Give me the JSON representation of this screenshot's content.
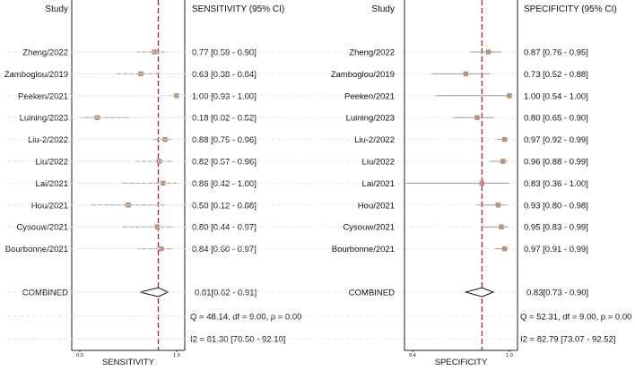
{
  "chart_data": [
    {
      "type": "forest",
      "study_header": "Study",
      "ci_header": "SENSITIVITY (95% CI)",
      "xlabel": "SENSITIVITY",
      "xlim": [
        0.0,
        1.0
      ],
      "xticks": [
        "0.0",
        "1.0"
      ],
      "reference_line": 0.81,
      "studies": [
        {
          "name": "Zheng/2022",
          "est": 0.77,
          "lo": 0.59,
          "hi": 0.9,
          "label": "0.77 [0.59 - 0.90]"
        },
        {
          "name": "Zamboglou/2019",
          "est": 0.63,
          "lo": 0.38,
          "hi": 0.84,
          "label": "0.63 [0.38 - 0.84]"
        },
        {
          "name": "Peeken/2021",
          "est": 1.0,
          "lo": 0.93,
          "hi": 1.0,
          "label": "1.00 [0.93 - 1.00]"
        },
        {
          "name": "Luining/2023",
          "est": 0.18,
          "lo": 0.02,
          "hi": 0.52,
          "label": "0.18 [0.02 - 0.52]"
        },
        {
          "name": "Liu-2/2022",
          "est": 0.88,
          "lo": 0.75,
          "hi": 0.96,
          "label": "0.88 [0.75 - 0.96]"
        },
        {
          "name": "Liu/2022",
          "est": 0.82,
          "lo": 0.57,
          "hi": 0.96,
          "label": "0.82 [0.57 - 0.96]"
        },
        {
          "name": "Lai/2021",
          "est": 0.86,
          "lo": 0.42,
          "hi": 1.0,
          "label": "0.86 [0.42 - 1.00]"
        },
        {
          "name": "Hou/2021",
          "est": 0.5,
          "lo": 0.12,
          "hi": 0.88,
          "label": "0.50 [0.12 - 0.88]"
        },
        {
          "name": "Cysouw/2021",
          "est": 0.8,
          "lo": 0.44,
          "hi": 0.97,
          "label": "0.80 [0.44 - 0.97]"
        },
        {
          "name": "Bourbonne/2021",
          "est": 0.84,
          "lo": 0.6,
          "hi": 0.97,
          "label": "0.84 [0.60 - 0.97]"
        }
      ],
      "combined": {
        "name": "COMBINED",
        "est": 0.81,
        "lo": 0.62,
        "hi": 0.91,
        "label": "0.81[0.62 - 0.91]"
      },
      "stats": [
        "Q = 48.14, df = 9.00, p =  0.00",
        "I2 = 81.30 [70.50 - 92.10]"
      ]
    },
    {
      "type": "forest",
      "study_header": "Study",
      "ci_header": "SPECIFICITY (95% CI)",
      "xlabel": "SPECIFICITY",
      "xlim": [
        0.4,
        1.0
      ],
      "xticks": [
        "0.4",
        "1.0"
      ],
      "reference_line": 0.83,
      "studies": [
        {
          "name": "Zheng/2022",
          "est": 0.87,
          "lo": 0.76,
          "hi": 0.95,
          "label": "0.87 [0.76 - 0.95]"
        },
        {
          "name": "Zamboglou/2019",
          "est": 0.73,
          "lo": 0.52,
          "hi": 0.88,
          "label": "0.73 [0.52 - 0.88]"
        },
        {
          "name": "Peeken/2021",
          "est": 1.0,
          "lo": 0.54,
          "hi": 1.0,
          "label": "1.00 [0.54 - 1.00]"
        },
        {
          "name": "Luining/2023",
          "est": 0.8,
          "lo": 0.65,
          "hi": 0.9,
          "label": "0.80 [0.65 - 0.90]"
        },
        {
          "name": "Liu-2/2022",
          "est": 0.97,
          "lo": 0.92,
          "hi": 0.99,
          "label": "0.97 [0.92 - 0.99]"
        },
        {
          "name": "Liu/2022",
          "est": 0.96,
          "lo": 0.88,
          "hi": 0.99,
          "label": "0.96 [0.88 - 0.99]"
        },
        {
          "name": "Lai/2021",
          "est": 0.83,
          "lo": 0.36,
          "hi": 1.0,
          "label": "0.83 [0.36 - 1.00]"
        },
        {
          "name": "Hou/2021",
          "est": 0.93,
          "lo": 0.8,
          "hi": 0.98,
          "label": "0.93 [0.80 - 0.98]"
        },
        {
          "name": "Cysouw/2021",
          "est": 0.95,
          "lo": 0.83,
          "hi": 0.99,
          "label": "0.95 [0.83 - 0.99]"
        },
        {
          "name": "Bourbonne/2021",
          "est": 0.97,
          "lo": 0.91,
          "hi": 0.99,
          "label": "0.97 [0.91 - 0.99]"
        }
      ],
      "combined": {
        "name": "COMBINED",
        "est": 0.83,
        "lo": 0.73,
        "hi": 0.9,
        "label": "0.83[0.73 - 0.90]"
      },
      "stats": [
        "Q = 52.31, df = 9.00, p =  0.00",
        "I2 = 82.79 [73.07 - 92.52]"
      ]
    }
  ],
  "colors": {
    "marker": "#b8957a",
    "ci_line": "#9a9a9a",
    "reference_line": "#c0143c",
    "frame": "#222222",
    "gridline": "#e4e4e4"
  }
}
